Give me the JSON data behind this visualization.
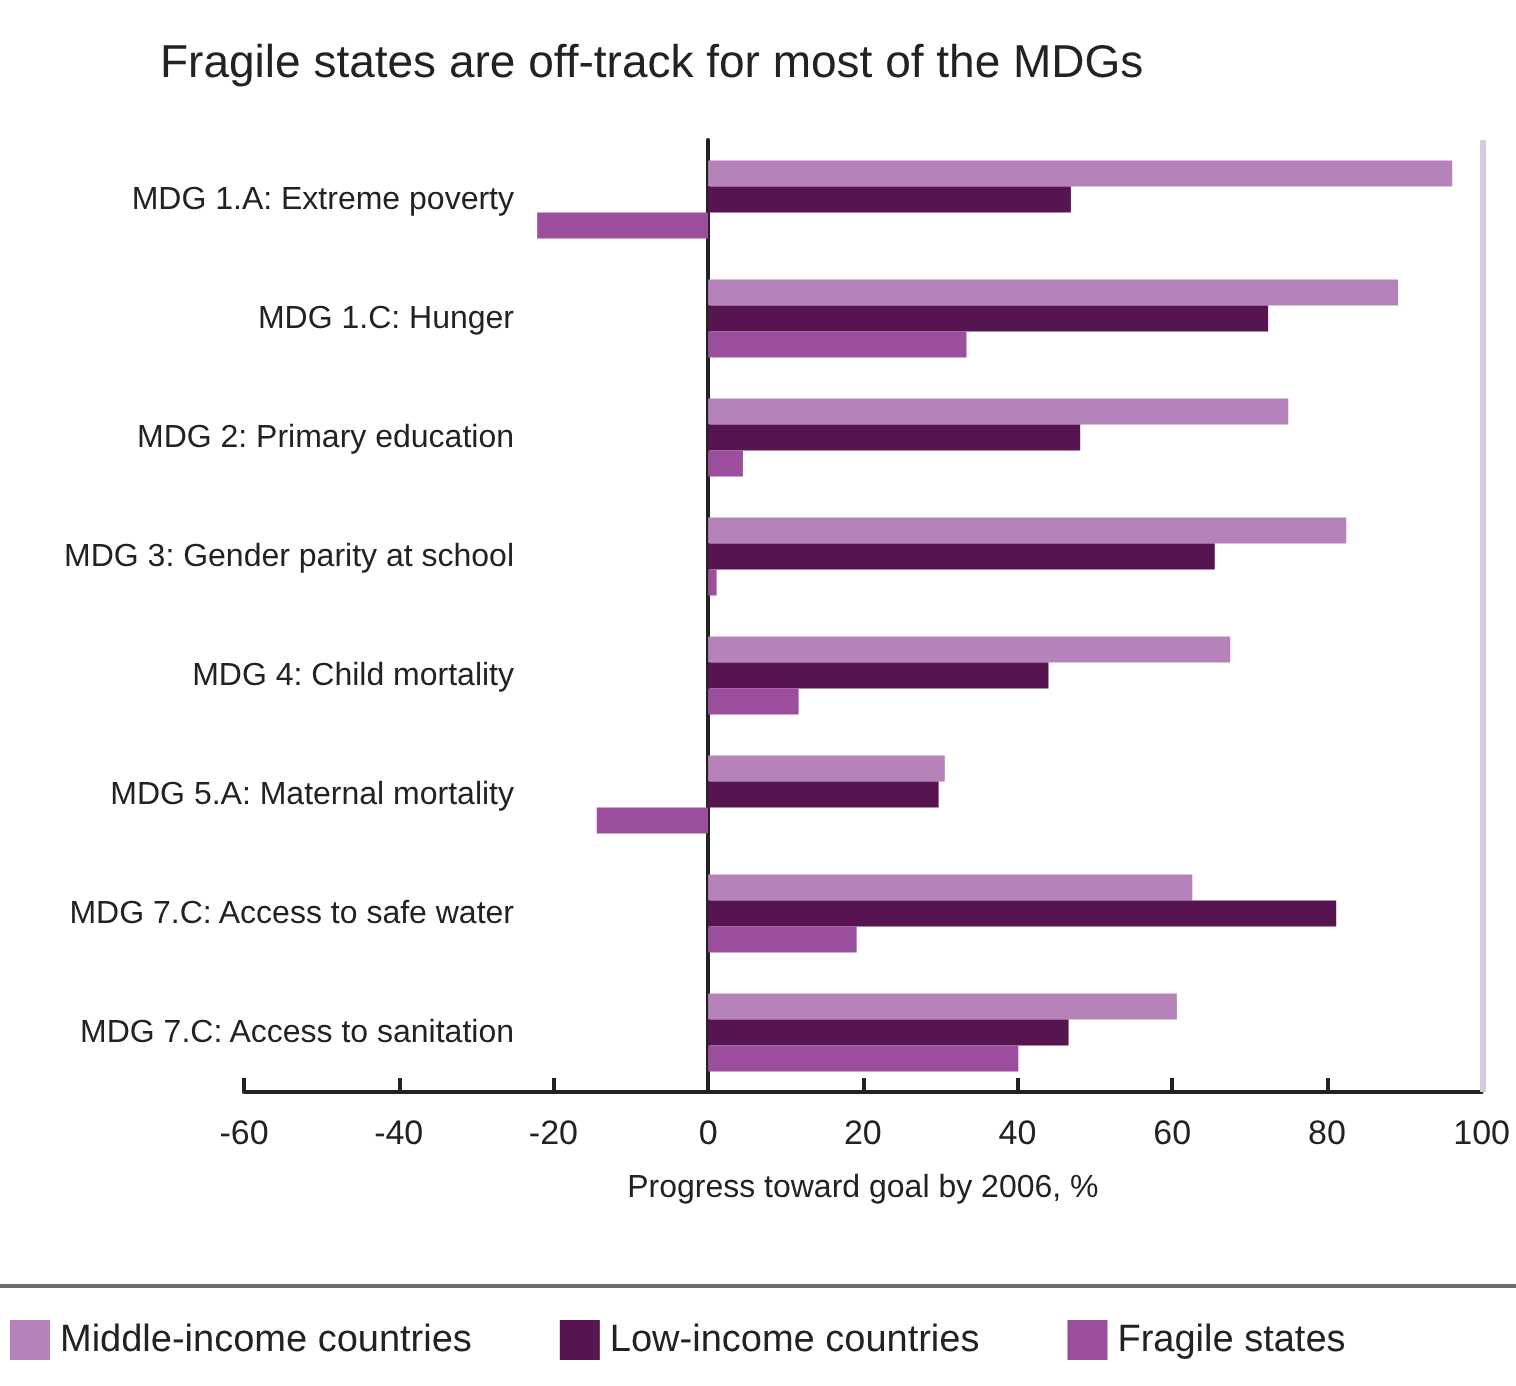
{
  "chart_data": {
    "type": "bar",
    "orientation": "horizontal",
    "title": "Fragile states are off-track for most of the MDGs",
    "xlabel": "Progress toward goal by 2006, %",
    "categories": [
      "MDG 1.A: Extreme poverty",
      "MDG 1.C: Hunger",
      "MDG 2: Primary education",
      "MDG 3: Gender parity at school",
      "MDG 4: Child mortality",
      "MDG 5.A: Maternal mortality",
      "MDG 7.C: Access to safe water",
      "MDG 7.C: Access to sanitation"
    ],
    "series": [
      {
        "name": "Middle-income countries",
        "color": "#b583b9",
        "values": [
          96.2,
          89.2,
          75.0,
          82.5,
          67.5,
          30.6,
          62.6,
          60.6
        ]
      },
      {
        "name": "Low-income countries",
        "color": "#561550",
        "values": [
          46.9,
          72.4,
          48.1,
          65.5,
          44.0,
          29.8,
          81.2,
          46.6
        ]
      },
      {
        "name": "Fragile states",
        "color": "#9a4e9b",
        "values": [
          -22.1,
          33.4,
          4.5,
          1.1,
          11.7,
          -14.4,
          19.2,
          40.1
        ]
      }
    ],
    "xlim": [
      -60,
      100
    ],
    "xticks": [
      -60,
      -40,
      -20,
      0,
      20,
      40,
      60,
      80,
      100
    ],
    "ref_lines": [
      {
        "axis": "x",
        "value": 100,
        "color": "#dcc8e0"
      }
    ],
    "legend": "bottom"
  }
}
